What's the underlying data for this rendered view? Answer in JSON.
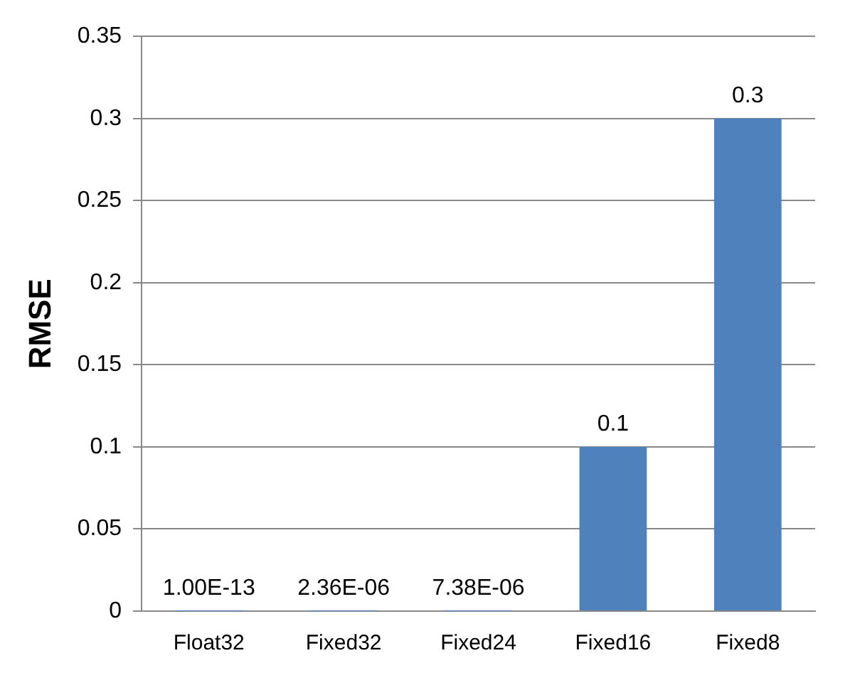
{
  "chart_data": {
    "type": "bar",
    "ylabel": "RMSE",
    "categories": [
      "Float32",
      "Fixed32",
      "Fixed24",
      "Fixed16",
      "Fixed8"
    ],
    "values": [
      1e-13,
      2.36e-06,
      7.38e-06,
      0.1,
      0.3
    ],
    "value_labels": [
      "1.00E-13",
      "2.36E-06",
      "7.38E-06",
      "0.1",
      "0.3"
    ],
    "color": "#4f81bd",
    "ylim": [
      0,
      0.35
    ],
    "yticks": [
      0,
      0.05,
      0.1,
      0.15,
      0.2,
      0.25,
      0.3,
      0.35
    ],
    "grid": "y"
  }
}
